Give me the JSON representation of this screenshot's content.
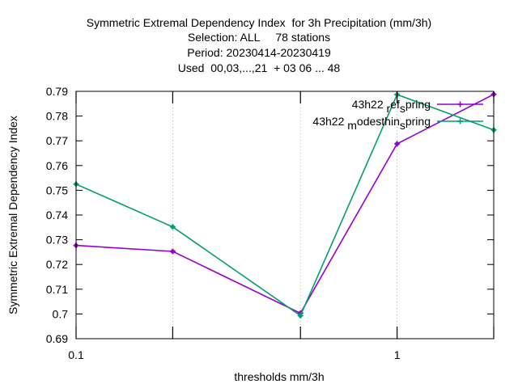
{
  "title_lines": [
    "Symmetric Extremal Dependency Index  for 3h Precipitation (mm/3h)",
    "Selection: ALL     78 stations",
    "Period: 20230414-20230419",
    "Used  00,03,...,21  + 03 06 ... 48"
  ],
  "chart_data": {
    "type": "line",
    "title": "Symmetric Extremal Dependency Index  for 3h Precipitation (mm/3h)",
    "xlabel": "thresholds mm/3h",
    "ylabel": "Symmetric Extremal Dependency Index",
    "x_scale": "log",
    "xlim": [
      0.1,
      2
    ],
    "ylim": [
      0.69,
      0.79
    ],
    "x_ticks": [
      {
        "value": 0.1,
        "label": "0.1"
      },
      {
        "value": 0.2,
        "label": ""
      },
      {
        "value": 0.5,
        "label": ""
      },
      {
        "value": 1,
        "label": "1"
      },
      {
        "value": 2,
        "label": ""
      }
    ],
    "y_ticks": [
      {
        "value": 0.69,
        "label": "0.69"
      },
      {
        "value": 0.7,
        "label": "0.7"
      },
      {
        "value": 0.71,
        "label": "0.71"
      },
      {
        "value": 0.72,
        "label": "0.72"
      },
      {
        "value": 0.73,
        "label": "0.73"
      },
      {
        "value": 0.74,
        "label": "0.74"
      },
      {
        "value": 0.75,
        "label": "0.75"
      },
      {
        "value": 0.76,
        "label": "0.76"
      },
      {
        "value": 0.77,
        "label": "0.77"
      },
      {
        "value": 0.78,
        "label": "0.78"
      },
      {
        "value": 0.79,
        "label": "0.79"
      }
    ],
    "grid": "x-dotted",
    "legend_position": "top-right",
    "x": [
      0.1,
      0.2,
      0.5,
      1,
      2
    ],
    "series": [
      {
        "name": "43h22",
        "name_sub1": "r",
        "name_mid": "ef",
        "name_sub2": "s",
        "name_tail": "pring",
        "color": "#9400d3",
        "values": [
          0.7277,
          0.7253,
          0.7003,
          0.7688,
          0.7888
        ]
      },
      {
        "name": "43h22",
        "name_sub1": "m",
        "name_mid": "odesthin",
        "name_sub2": "s",
        "name_tail": "pring",
        "color": "#009e73",
        "values": [
          0.7525,
          0.7352,
          0.6993,
          0.7887,
          0.7744
        ]
      }
    ]
  }
}
